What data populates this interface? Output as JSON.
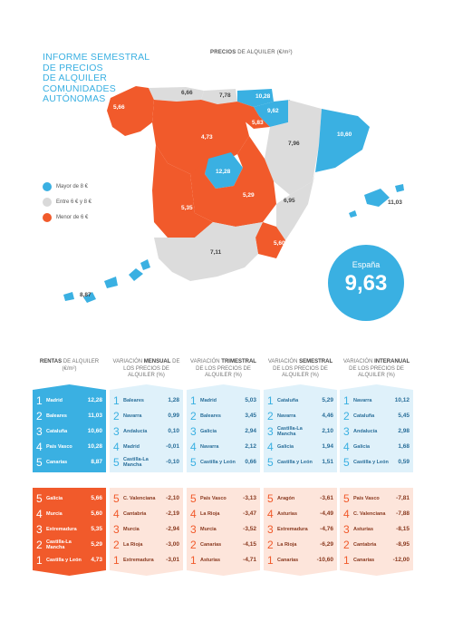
{
  "title_lines": [
    "INFORME SEMESTRAL",
    "DE PRECIOS",
    "DE ALQUILER",
    "COMUNIDADES",
    "AUTÓNOMAS"
  ],
  "map_caption": {
    "bold": "PRECIOS",
    "rest": " DE ALQUILER (€/m²)"
  },
  "map_values": {
    "galicia": "5,66",
    "asturias": "6,66",
    "cantabria": "7,78",
    "pais_vasco": "10,28",
    "navarra": "9,62",
    "la_rioja": "5,83",
    "castilla_leon": "4,73",
    "aragon": "7,96",
    "cataluna": "10,60",
    "madrid": "12,28",
    "castilla_la_mancha": "5,29",
    "extremadura": "5,35",
    "c_valenciana": "6,95",
    "baleares": "11,03",
    "andalucia": "7,11",
    "murcia": "5,60",
    "canarias": "8,87"
  },
  "legend": [
    {
      "label": "Mayor de 8 €",
      "color": "#3ab0e2"
    },
    {
      "label": "Entre 6 € y 8 €",
      "color": "#d9d9d9"
    },
    {
      "label": "Menor de 6 €",
      "color": "#f15a2b"
    }
  ],
  "spain": {
    "name": "España",
    "value": "9,63"
  },
  "colors": {
    "blue": "#3ab0e2",
    "orange": "#f15a2b",
    "grey": "#dcdcdc"
  },
  "columns": [
    {
      "head_pre": "",
      "head_bold": "RENTAS",
      "head_post": " DE ALQUILER (€/m²)",
      "top_light": false,
      "top": [
        {
          "rank": "1",
          "name": "Madrid",
          "value": "12,28"
        },
        {
          "rank": "2",
          "name": "Baleares",
          "value": "11,03"
        },
        {
          "rank": "3",
          "name": "Cataluña",
          "value": "10,60"
        },
        {
          "rank": "4",
          "name": "País Vasco",
          "value": "10,28"
        },
        {
          "rank": "5",
          "name": "Canarias",
          "value": "8,87"
        }
      ],
      "bottom": [
        {
          "rank": "5",
          "name": "Galicia",
          "value": "5,66"
        },
        {
          "rank": "4",
          "name": "Murcia",
          "value": "5,60"
        },
        {
          "rank": "3",
          "name": "Extremadura",
          "value": "5,35"
        },
        {
          "rank": "2",
          "name": "Castilla-La Mancha",
          "value": "5,29"
        },
        {
          "rank": "1",
          "name": "Castilla y León",
          "value": "4,73"
        }
      ]
    },
    {
      "head_pre": "VARIACIÓN ",
      "head_bold": "MENSUAL",
      "head_post": " DE LOS PRECIOS DE ALQUILER (%)",
      "top": [
        {
          "rank": "1",
          "name": "Baleares",
          "value": "1,28"
        },
        {
          "rank": "2",
          "name": "Navarra",
          "value": "0,99"
        },
        {
          "rank": "3",
          "name": "Andalucía",
          "value": "0,10"
        },
        {
          "rank": "4",
          "name": "Madrid",
          "value": "-0,01"
        },
        {
          "rank": "5",
          "name": "Castilla-La Mancha",
          "value": "-0,10"
        }
      ],
      "bottom": [
        {
          "rank": "5",
          "name": "C. Valenciana",
          "value": "-2,10"
        },
        {
          "rank": "4",
          "name": "Cantabria",
          "value": "-2,19"
        },
        {
          "rank": "3",
          "name": "Murcia",
          "value": "-2,94"
        },
        {
          "rank": "2",
          "name": "La Rioja",
          "value": "-3,00"
        },
        {
          "rank": "1",
          "name": "Extremadura",
          "value": "-3,01"
        }
      ]
    },
    {
      "head_pre": "VARIACIÓN ",
      "head_bold": "TRIMESTRAL",
      "head_post": " DE LOS PRECIOS DE ALQUILER (%)",
      "top": [
        {
          "rank": "1",
          "name": "Madrid",
          "value": "5,03"
        },
        {
          "rank": "2",
          "name": "Baleares",
          "value": "3,45"
        },
        {
          "rank": "3",
          "name": "Galicia",
          "value": "2,94"
        },
        {
          "rank": "4",
          "name": "Navarra",
          "value": "2,12"
        },
        {
          "rank": "5",
          "name": "Castilla y León",
          "value": "0,66"
        }
      ],
      "bottom": [
        {
          "rank": "5",
          "name": "País Vasco",
          "value": "-3,13"
        },
        {
          "rank": "4",
          "name": "La Rioja",
          "value": "-3,47"
        },
        {
          "rank": "3",
          "name": "Murcia",
          "value": "-3,52"
        },
        {
          "rank": "2",
          "name": "Canarias",
          "value": "-4,15"
        },
        {
          "rank": "1",
          "name": "Asturias",
          "value": "-4,71"
        }
      ]
    },
    {
      "head_pre": "VARIACIÓN ",
      "head_bold": "SEMESTRAL",
      "head_post": " DE LOS PRECIOS DE ALQUILER (%)",
      "top": [
        {
          "rank": "1",
          "name": "Cataluña",
          "value": "5,29"
        },
        {
          "rank": "2",
          "name": "Navarra",
          "value": "4,46"
        },
        {
          "rank": "3",
          "name": "Castilla-La Mancha",
          "value": "2,10"
        },
        {
          "rank": "4",
          "name": "Galicia",
          "value": "1,94"
        },
        {
          "rank": "5",
          "name": "Castilla y León",
          "value": "1,51"
        }
      ],
      "bottom": [
        {
          "rank": "5",
          "name": "Aragón",
          "value": "-3,61"
        },
        {
          "rank": "4",
          "name": "Asturias",
          "value": "-4,49"
        },
        {
          "rank": "3",
          "name": "Extremadura",
          "value": "-4,76"
        },
        {
          "rank": "2",
          "name": "La Rioja",
          "value": "-6,29"
        },
        {
          "rank": "1",
          "name": "Canarias",
          "value": "-10,60"
        }
      ]
    },
    {
      "head_pre": "VARIACIÓN ",
      "head_bold": "INTERANUAL",
      "head_post": " DE LOS PRECIOS DE ALQUILER (%)",
      "top": [
        {
          "rank": "1",
          "name": "Navarra",
          "value": "10,12"
        },
        {
          "rank": "2",
          "name": "Cataluña",
          "value": "5,45"
        },
        {
          "rank": "3",
          "name": "Andalucía",
          "value": "2,98"
        },
        {
          "rank": "4",
          "name": "Galicia",
          "value": "1,68"
        },
        {
          "rank": "5",
          "name": "Castilla y León",
          "value": "0,59"
        }
      ],
      "bottom": [
        {
          "rank": "5",
          "name": "País Vasco",
          "value": "-7,81"
        },
        {
          "rank": "4",
          "name": "C. Valenciana",
          "value": "-7,88"
        },
        {
          "rank": "3",
          "name": "Asturias",
          "value": "-8,15"
        },
        {
          "rank": "2",
          "name": "Cantabria",
          "value": "-8,95"
        },
        {
          "rank": "1",
          "name": "Canarias",
          "value": "-12,00"
        }
      ]
    }
  ]
}
